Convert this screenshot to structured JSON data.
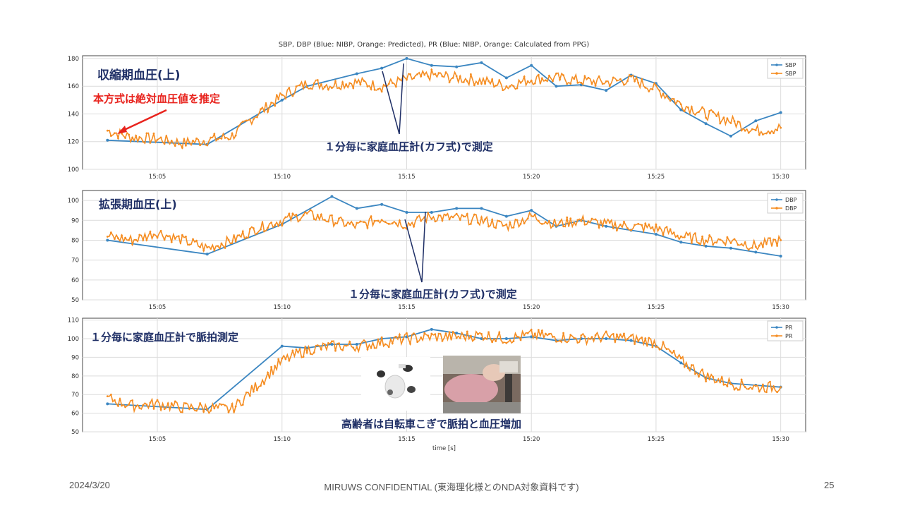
{
  "figure_title": "SBP, DBP (Blue: NIBP, Orange: Predicted), PR (Blue: NIBP, Orange: Calculated from PPG)",
  "footer": {
    "date": "2024/3/20",
    "center": "MIRUWS CONFIDENTIAL (東海理化様とのNDA対象資料です)",
    "page": "25"
  },
  "colors": {
    "nibp": "#3b86c1",
    "predicted": "#f58d22",
    "annot_navy": "#1f2f66",
    "annot_red": "#e8231d"
  },
  "chart_data": [
    {
      "type": "line",
      "x_unit": "time",
      "xlim": [
        "15:02",
        "15:31"
      ],
      "xticks": [
        "15:05",
        "15:10",
        "15:15",
        "15:20",
        "15:25",
        "15:30"
      ],
      "ylim": [
        100,
        182
      ],
      "yticks": [
        100,
        120,
        140,
        160,
        180
      ],
      "grid": true,
      "legend": "top-right",
      "annotations": {
        "title": "収縮期血圧(上)",
        "note": "本方式は絶対血圧値を推定",
        "callout": "１分毎に家庭血圧計(カフ式)で測定"
      },
      "series": [
        {
          "name": "SBP",
          "source": "nibp",
          "x": [
            "15:03",
            "15:07",
            "15:10",
            "15:11",
            "15:13",
            "15:14",
            "15:15",
            "15:16",
            "15:17",
            "15:18",
            "15:19",
            "15:20",
            "15:21",
            "15:22",
            "15:23",
            "15:24",
            "15:25",
            "15:26",
            "15:27",
            "15:28",
            "15:29",
            "15:30"
          ],
          "y": [
            121,
            118,
            150,
            160,
            169,
            173,
            180,
            175,
            174,
            177,
            166,
            175,
            160,
            161,
            157,
            168,
            162,
            143,
            133,
            124,
            135,
            141
          ]
        },
        {
          "name": "SBP",
          "source": "predicted",
          "x": [
            "15:03",
            "15:04",
            "15:05",
            "15:06",
            "15:07",
            "15:08",
            "15:09",
            "15:10",
            "15:11",
            "15:12",
            "15:13",
            "15:14",
            "15:15",
            "15:16",
            "15:17",
            "15:18",
            "15:19",
            "15:20",
            "15:21",
            "15:22",
            "15:23",
            "15:24",
            "15:25",
            "15:26",
            "15:27",
            "15:28",
            "15:29",
            "15:30"
          ],
          "y": [
            128,
            123,
            122,
            119,
            121,
            124,
            140,
            153,
            162,
            161,
            163,
            160,
            165,
            168,
            166,
            164,
            160,
            165,
            166,
            164,
            163,
            165,
            158,
            147,
            140,
            135,
            128,
            130
          ]
        }
      ]
    },
    {
      "type": "line",
      "x_unit": "time",
      "xlim": [
        "15:02",
        "15:31"
      ],
      "xticks": [
        "15:05",
        "15:10",
        "15:15",
        "15:20",
        "15:25",
        "15:30"
      ],
      "ylim": [
        50,
        105
      ],
      "yticks": [
        50,
        60,
        70,
        80,
        90,
        100
      ],
      "grid": true,
      "legend": "top-right",
      "annotations": {
        "title": "拡張期血圧(上)",
        "callout": "１分毎に家庭血圧計(カフ式)で測定"
      },
      "series": [
        {
          "name": "DBP",
          "source": "nibp",
          "x": [
            "15:03",
            "15:07",
            "15:10",
            "15:12",
            "15:13",
            "15:14",
            "15:15",
            "15:16",
            "15:17",
            "15:18",
            "15:19",
            "15:20",
            "15:21",
            "15:22",
            "15:23",
            "15:24",
            "15:25",
            "15:26",
            "15:27",
            "15:28",
            "15:29",
            "15:30"
          ],
          "y": [
            80,
            73,
            88,
            102,
            96,
            98,
            94,
            94,
            96,
            96,
            92,
            95,
            87,
            90,
            87,
            85,
            83,
            79,
            77,
            76,
            74,
            72
          ]
        },
        {
          "name": "DBP",
          "source": "predicted",
          "x": [
            "15:03",
            "15:04",
            "15:05",
            "15:06",
            "15:07",
            "15:08",
            "15:09",
            "15:10",
            "15:11",
            "15:12",
            "15:13",
            "15:14",
            "15:15",
            "15:16",
            "15:17",
            "15:18",
            "15:19",
            "15:20",
            "15:21",
            "15:22",
            "15:23",
            "15:24",
            "15:25",
            "15:26",
            "15:27",
            "15:28",
            "15:29",
            "15:30"
          ],
          "y": [
            82,
            80,
            84,
            80,
            76,
            80,
            86,
            90,
            93,
            90,
            87,
            91,
            88,
            92,
            91,
            90,
            87,
            92,
            88,
            90,
            88,
            87,
            86,
            82,
            80,
            80,
            77,
            80
          ]
        }
      ]
    },
    {
      "type": "line",
      "x_unit": "time",
      "xlabel": "time [s]",
      "xlim": [
        "15:02",
        "15:31"
      ],
      "xticks": [
        "15:05",
        "15:10",
        "15:15",
        "15:20",
        "15:25",
        "15:30"
      ],
      "ylim": [
        50,
        111
      ],
      "yticks": [
        50,
        60,
        70,
        80,
        90,
        100,
        110
      ],
      "grid": true,
      "legend": "top-right",
      "annotations": {
        "title": "１分毎に家庭血圧計で脈拍測定",
        "note": "高齢者は自転車こぎで脈拍と血圧増加"
      },
      "series": [
        {
          "name": "PR",
          "source": "nibp",
          "x": [
            "15:03",
            "15:07",
            "15:10",
            "15:11",
            "15:12",
            "15:13",
            "15:14",
            "15:15",
            "15:16",
            "15:17",
            "15:18",
            "15:19",
            "15:20",
            "15:21",
            "15:22",
            "15:23",
            "15:24",
            "15:25",
            "15:26",
            "15:27",
            "15:28",
            "15:29",
            "15:30"
          ],
          "y": [
            65,
            62,
            96,
            95,
            97,
            97,
            100,
            101,
            105,
            103,
            100,
            100,
            101,
            99,
            100,
            100,
            99,
            96,
            87,
            79,
            76,
            75,
            74
          ]
        },
        {
          "name": "PR",
          "source": "predicted",
          "x": [
            "15:03",
            "15:04",
            "15:05",
            "15:06",
            "15:07",
            "15:08",
            "15:09",
            "15:10",
            "15:11",
            "15:12",
            "15:13",
            "15:14",
            "15:15",
            "15:16",
            "15:17",
            "15:18",
            "15:19",
            "15:20",
            "15:21",
            "15:22",
            "15:23",
            "15:24",
            "15:25",
            "15:26",
            "15:27",
            "15:28",
            "15:29",
            "15:30"
          ],
          "y": [
            68,
            64,
            65,
            63,
            63,
            62,
            75,
            88,
            94,
            96,
            96,
            98,
            100,
            101,
            101,
            102,
            100,
            102,
            101,
            100,
            101,
            100,
            98,
            88,
            80,
            76,
            74,
            74
          ]
        }
      ]
    }
  ]
}
